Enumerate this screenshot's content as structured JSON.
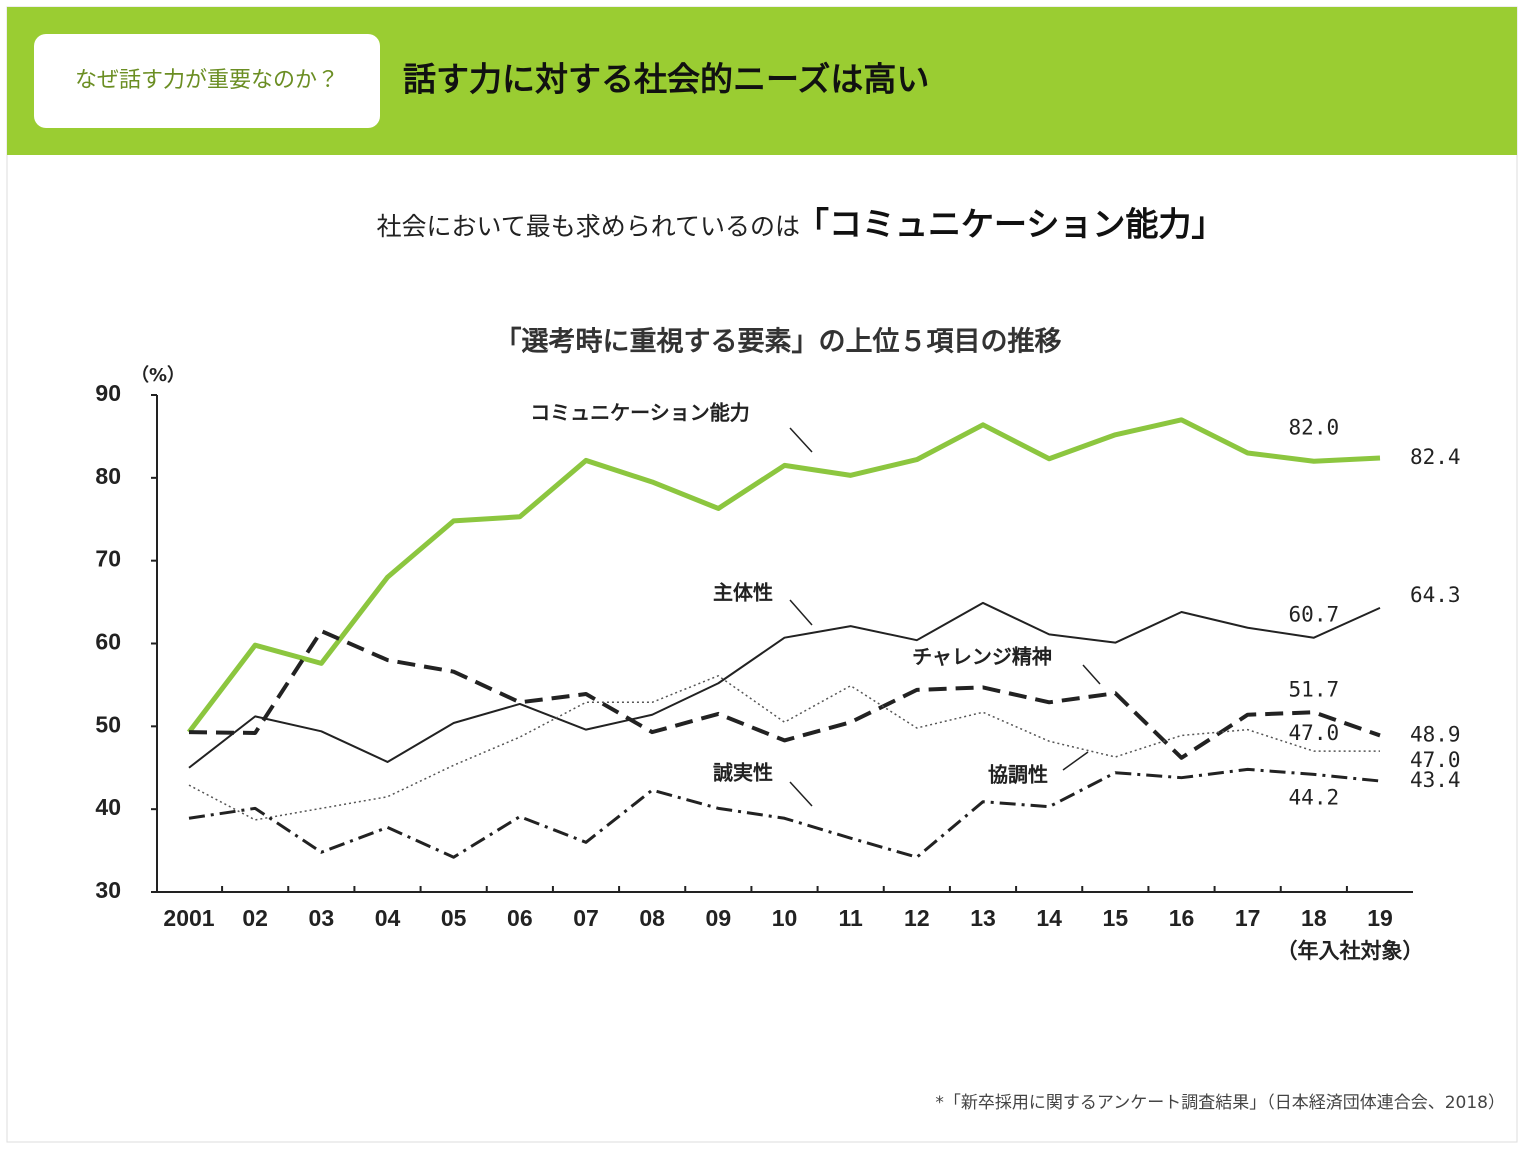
{
  "header": {
    "tag": "なぜ話す力が重要なのか？",
    "title": "話す力に対する社会的ニーズは高い"
  },
  "subtitle": {
    "lead": "社会において最も求められているのは",
    "emphasis": "「コミュニケーション能力」"
  },
  "chart_data": {
    "type": "line",
    "title": "「選考時に重視する要素」の上位５項目の推移",
    "y_unit": "（%）",
    "x_note": "（年入社対象）",
    "categories": [
      "2001",
      "02",
      "03",
      "04",
      "05",
      "06",
      "07",
      "08",
      "09",
      "10",
      "11",
      "12",
      "13",
      "14",
      "15",
      "16",
      "17",
      "18",
      "19"
    ],
    "ylim": [
      30,
      90
    ],
    "yticks": [
      30,
      40,
      50,
      60,
      70,
      80,
      90
    ],
    "series": [
      {
        "name": "コミュニケーション能力",
        "color": "#8cc63f",
        "dash": "solid",
        "values": [
          49.3,
          59.8,
          57.6,
          68.0,
          74.8,
          75.3,
          82.1,
          79.5,
          76.3,
          81.5,
          80.3,
          82.2,
          86.4,
          82.3,
          85.2,
          87.0,
          83.0,
          82.0,
          82.4
        ],
        "value_labels": [
          null,
          null,
          null,
          null,
          null,
          null,
          null,
          null,
          null,
          null,
          null,
          null,
          null,
          null,
          null,
          null,
          null,
          "82.0",
          "82.4"
        ]
      },
      {
        "name": "主体性",
        "color": "#222222",
        "dash": "solid",
        "values": [
          45.0,
          51.2,
          49.4,
          45.7,
          50.4,
          52.7,
          49.6,
          51.4,
          55.2,
          60.7,
          62.1,
          60.4,
          64.9,
          61.1,
          60.1,
          63.8,
          61.9,
          60.7,
          64.3
        ],
        "value_labels": [
          null,
          null,
          null,
          null,
          null,
          null,
          null,
          null,
          null,
          null,
          null,
          null,
          null,
          null,
          null,
          null,
          null,
          "60.7",
          "64.3"
        ]
      },
      {
        "name": "チャレンジ精神",
        "color": "#222222",
        "dash": "dashed",
        "values": [
          49.3,
          49.2,
          61.5,
          58.0,
          56.6,
          52.9,
          53.9,
          49.3,
          51.5,
          48.3,
          50.5,
          54.4,
          54.7,
          52.9,
          54.0,
          46.2,
          51.4,
          51.7,
          48.9
        ],
        "value_labels": [
          null,
          null,
          null,
          null,
          null,
          null,
          null,
          null,
          null,
          null,
          null,
          null,
          null,
          null,
          null,
          null,
          null,
          "51.7",
          "48.9"
        ]
      },
      {
        "name": "協調性",
        "color": "#555555",
        "dash": "dotted",
        "values": [
          42.9,
          38.7,
          40.1,
          41.5,
          45.3,
          48.7,
          52.9,
          52.9,
          56.1,
          50.5,
          54.9,
          49.8,
          51.7,
          48.2,
          46.3,
          48.9,
          49.6,
          47.0,
          47.0
        ],
        "value_labels": [
          null,
          null,
          null,
          null,
          null,
          null,
          null,
          null,
          null,
          null,
          null,
          null,
          null,
          null,
          null,
          null,
          null,
          "47.0",
          "47.0"
        ]
      },
      {
        "name": "誠実性",
        "color": "#222222",
        "dash": "dashdot",
        "values": [
          38.9,
          40.1,
          34.8,
          37.8,
          34.2,
          39.1,
          36.0,
          42.3,
          40.1,
          38.9,
          36.5,
          34.2,
          40.9,
          40.3,
          44.4,
          43.8,
          44.8,
          44.2,
          43.4
        ],
        "value_labels": [
          null,
          null,
          null,
          null,
          null,
          null,
          null,
          null,
          null,
          null,
          null,
          null,
          null,
          null,
          null,
          null,
          null,
          "44.2",
          "43.4"
        ]
      }
    ]
  },
  "footnote": "*「新卒採用に関するアンケート調査結果」（日本経済団体連合会、2018）"
}
